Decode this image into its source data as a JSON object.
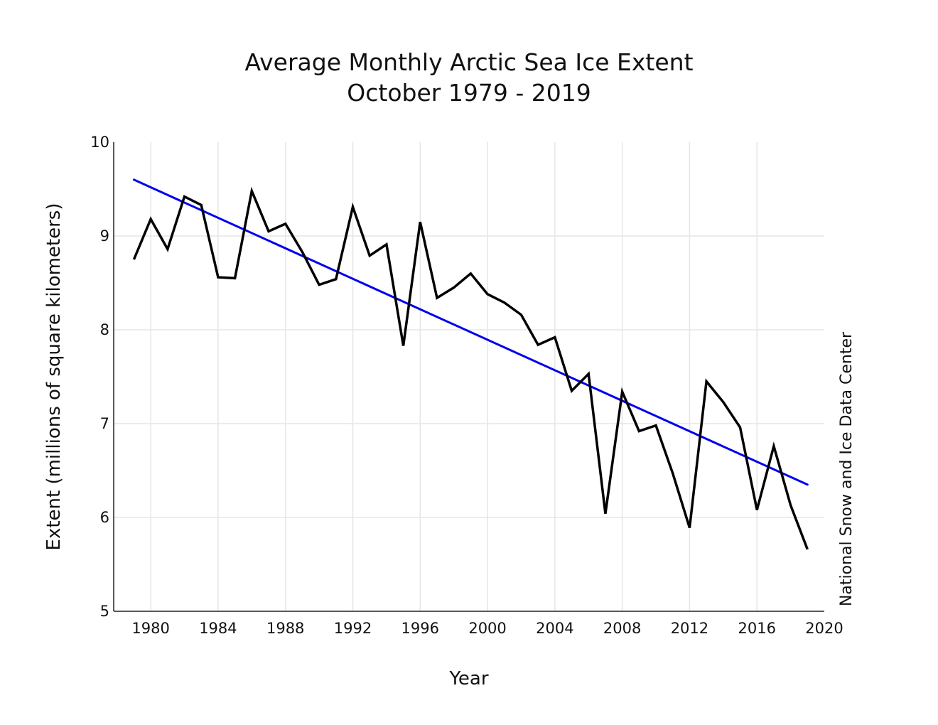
{
  "chart_data": {
    "type": "line",
    "title": "Average Monthly Arctic Sea Ice Extent",
    "subtitle": "October 1979 - 2019",
    "xlabel": "Year",
    "ylabel": "Extent (millions of square kilometers)",
    "source": "National Snow and Ice Data Center",
    "xlim": [
      1977.8,
      2020
    ],
    "ylim": [
      5,
      10
    ],
    "xticks": [
      1980,
      1984,
      1988,
      1992,
      1996,
      2000,
      2004,
      2008,
      2012,
      2016,
      2020
    ],
    "yticks": [
      5,
      6,
      7,
      8,
      9,
      10
    ],
    "grid": true,
    "colors": {
      "extent": "#000000",
      "trend": "#0000ee",
      "grid": "#e6e6e6"
    },
    "series": [
      {
        "name": "Extent",
        "x": [
          1979,
          1980,
          1981,
          1982,
          1983,
          1984,
          1985,
          1986,
          1987,
          1988,
          1989,
          1990,
          1991,
          1992,
          1993,
          1994,
          1995,
          1996,
          1997,
          1998,
          1999,
          2000,
          2001,
          2002,
          2003,
          2004,
          2005,
          2006,
          2007,
          2008,
          2009,
          2010,
          2011,
          2012,
          2013,
          2014,
          2015,
          2016,
          2017,
          2018,
          2019
        ],
        "values": [
          8.75,
          9.18,
          8.86,
          9.42,
          9.33,
          8.56,
          8.55,
          9.48,
          9.05,
          9.13,
          8.83,
          8.48,
          8.54,
          9.31,
          8.79,
          8.91,
          7.83,
          9.15,
          8.34,
          8.45,
          8.6,
          8.38,
          8.29,
          8.16,
          7.84,
          7.92,
          7.35,
          7.53,
          6.04,
          7.34,
          6.92,
          6.98,
          6.47,
          5.89,
          7.45,
          7.23,
          6.96,
          6.08,
          6.76,
          6.13,
          5.66
        ]
      },
      {
        "name": "Trend",
        "x": [
          1979,
          2019
        ],
        "values": [
          9.6,
          6.35
        ]
      }
    ]
  }
}
